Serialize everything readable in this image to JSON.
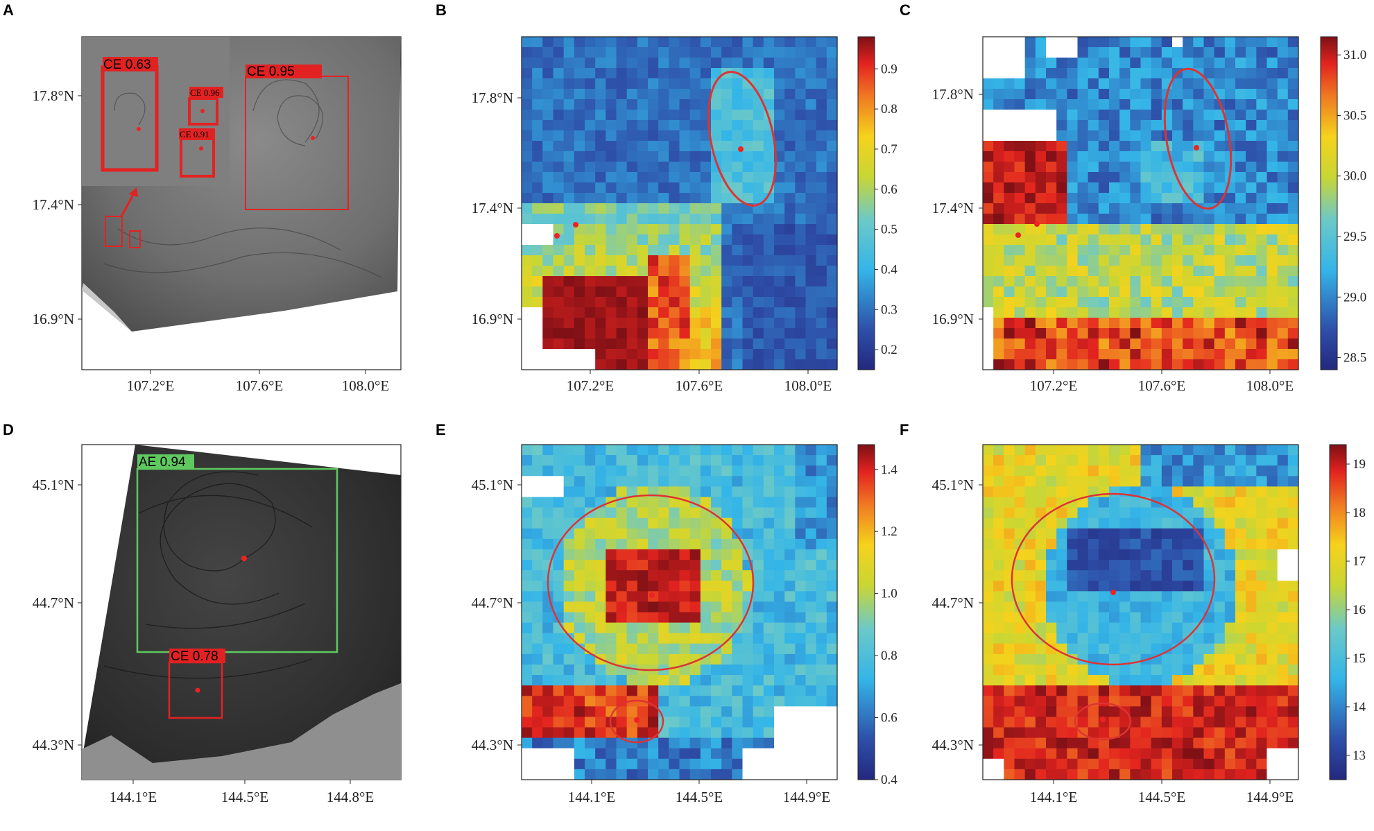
{
  "figure": {
    "panel_labels": [
      "A",
      "B",
      "C",
      "D",
      "E",
      "F"
    ]
  },
  "colors": {
    "ellipse": "#dd3333",
    "center_dot": "#ee2222",
    "ce_box": "#e22222",
    "ae_box": "#5fc95f",
    "ce_label_bg": "#e22222",
    "ae_label_bg": "#5fc95f",
    "colormap": "jet"
  },
  "chart_data": [
    {
      "panel": "A",
      "type": "image",
      "content": "SAR image with eddy detection boxes",
      "x_ticks": [
        "107.2°E",
        "107.6°E",
        "108.0°E"
      ],
      "y_ticks": [
        "17.8°N",
        "17.4°N",
        "16.9°N"
      ],
      "detections": [
        {
          "label": "CE",
          "score": "0.63"
        },
        {
          "label": "CE",
          "score": "0.96"
        },
        {
          "label": "CE",
          "score": "0.91"
        },
        {
          "label": "CE",
          "score": "0.95"
        }
      ]
    },
    {
      "panel": "B",
      "type": "heatmap",
      "x_ticks": [
        "107.2°E",
        "107.6°E",
        "108.0°E"
      ],
      "y_ticks": [
        "17.8°N",
        "17.4°N",
        "16.9°N"
      ],
      "colorbar": {
        "min": 0.15,
        "max": 0.98,
        "ticks": [
          "0.9",
          "0.8",
          "0.7",
          "0.6",
          "0.5",
          "0.4",
          "0.3",
          "0.2"
        ]
      }
    },
    {
      "panel": "C",
      "type": "heatmap",
      "x_ticks": [
        "107.2°E",
        "107.6°E",
        "108.0°E"
      ],
      "y_ticks": [
        "17.8°N",
        "17.4°N",
        "16.9°N"
      ],
      "colorbar": {
        "min": 28.4,
        "max": 31.15,
        "ticks": [
          "31.0",
          "30.5",
          "30.0",
          "29.5",
          "29.0",
          "28.5"
        ]
      }
    },
    {
      "panel": "D",
      "type": "image",
      "content": "SAR image with eddy detection boxes",
      "x_ticks": [
        "144.1°E",
        "144.5°E",
        "144.8°E"
      ],
      "y_ticks": [
        "45.1°N",
        "44.7°N",
        "44.3°N"
      ],
      "detections": [
        {
          "label": "AE",
          "score": "0.94"
        },
        {
          "label": "CE",
          "score": "0.78"
        }
      ]
    },
    {
      "panel": "E",
      "type": "heatmap",
      "x_ticks": [
        "144.1°E",
        "144.5°E",
        "144.9°E"
      ],
      "y_ticks": [
        "45.1°N",
        "44.7°N",
        "44.3°N"
      ],
      "colorbar": {
        "min": 0.4,
        "max": 1.48,
        "ticks": [
          "1.4",
          "1.2",
          "1.0",
          "0.8",
          "0.6",
          "0.4"
        ]
      }
    },
    {
      "panel": "F",
      "type": "heatmap",
      "x_ticks": [
        "144.1°E",
        "144.5°E",
        "144.9°E"
      ],
      "y_ticks": [
        "45.1°N",
        "44.7°N",
        "44.3°N"
      ],
      "colorbar": {
        "min": 12.5,
        "max": 19.4,
        "ticks": [
          "19",
          "18",
          "17",
          "16",
          "15",
          "14",
          "13"
        ]
      }
    }
  ]
}
